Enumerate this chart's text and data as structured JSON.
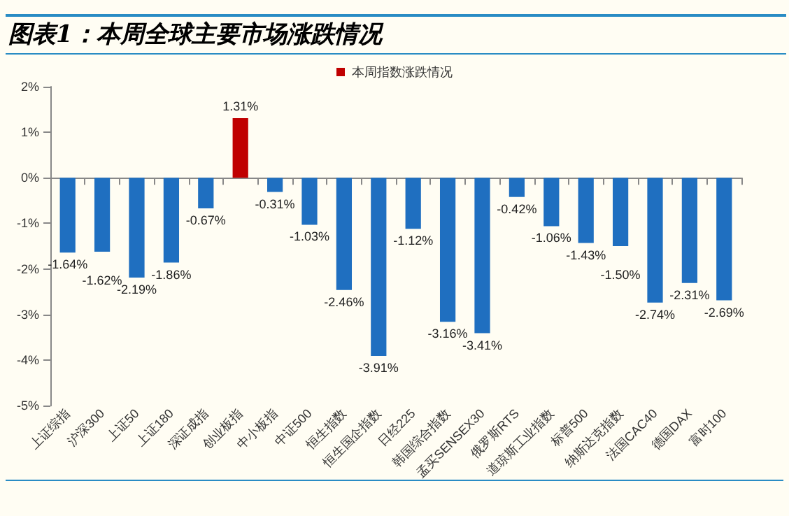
{
  "chart_data": {
    "type": "bar",
    "title": "图表1：本周全球主要市场涨跌情况",
    "categories": [
      "上证综指",
      "沪深300",
      "上证50",
      "上证180",
      "深证成指",
      "创业板指",
      "中小板指",
      "中证500",
      "恒生指数",
      "恒生国企指数",
      "日经225",
      "韩国综合指数",
      "孟买SENSEX30",
      "俄罗斯RTS",
      "道琼斯工业指数",
      "标普500",
      "纳斯达克指数",
      "法国CAC40",
      "德国DAX",
      "富时100"
    ],
    "series": [
      {
        "name": "本周指数涨跌情况",
        "color": "#c00000",
        "values": [
          -1.64,
          -1.62,
          -2.19,
          -1.86,
          -0.67,
          1.31,
          -0.31,
          -1.03,
          -2.46,
          -3.91,
          -1.12,
          -3.16,
          -3.41,
          -0.42,
          -1.06,
          -1.43,
          -1.5,
          -2.74,
          -2.31,
          -2.69
        ],
        "colors": [
          "#1f6fc0",
          "#1f6fc0",
          "#1f6fc0",
          "#1f6fc0",
          "#1f6fc0",
          "#c00000",
          "#1f6fc0",
          "#1f6fc0",
          "#1f6fc0",
          "#1f6fc0",
          "#1f6fc0",
          "#1f6fc0",
          "#1f6fc0",
          "#1f6fc0",
          "#1f6fc0",
          "#1f6fc0",
          "#1f6fc0",
          "#1f6fc0",
          "#1f6fc0",
          "#1f6fc0"
        ],
        "value_labels": [
          "-1.64%",
          "-1.62%",
          "-2.19%",
          "-1.86%",
          "-0.67%",
          "1.31%",
          "-0.31%",
          "-1.03%",
          "-2.46%",
          "-3.91%",
          "-1.12%",
          "-3.16%",
          "-3.41%",
          "-0.42%",
          "-1.06%",
          "-1.43%",
          "-1.50%",
          "-2.74%",
          "-2.31%",
          "-2.69%"
        ]
      }
    ],
    "ylim": [
      -5,
      2
    ],
    "yticks": [
      {
        "value": -5,
        "label": "-5%"
      },
      {
        "value": -4,
        "label": "-4%"
      },
      {
        "value": -3,
        "label": "-3%"
      },
      {
        "value": -2,
        "label": "-2%"
      },
      {
        "value": -1,
        "label": "-1%"
      },
      {
        "value": 0,
        "label": "0%"
      },
      {
        "value": 1,
        "label": "1%"
      },
      {
        "value": 2,
        "label": "2%"
      }
    ],
    "legend": "top"
  }
}
